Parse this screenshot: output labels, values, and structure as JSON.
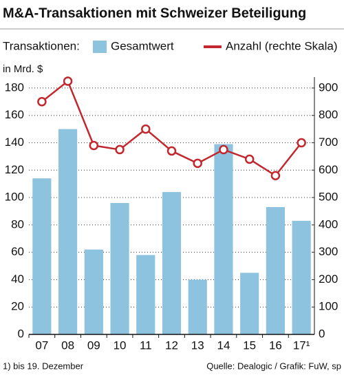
{
  "chart_data": {
    "type": "bar-line",
    "title": "M&A-Transaktionen mit Schweizer Beteiligung",
    "legend_title": "Transaktionen:",
    "y_label": "in Mrd. $",
    "categories": [
      "07",
      "08",
      "09",
      "10",
      "11",
      "12",
      "13",
      "14",
      "15",
      "16",
      "17¹"
    ],
    "series": [
      {
        "name": "Gesamtwert",
        "type": "bar",
        "color": "#8ec3e0",
        "values": [
          114,
          150,
          62,
          96,
          58,
          104,
          40,
          139,
          45,
          93,
          83
        ]
      },
      {
        "name": "Anzahl (rechte Skala)",
        "type": "line",
        "axis": "y2",
        "color": "#c1272d",
        "values": [
          850,
          925,
          690,
          675,
          750,
          670,
          625,
          675,
          640,
          580,
          700
        ]
      }
    ],
    "ylim": [
      0,
      188
    ],
    "yticks": [
      0,
      20,
      40,
      60,
      80,
      100,
      120,
      140,
      160,
      180
    ],
    "y2lim": [
      0,
      940
    ],
    "y2ticks": [
      0,
      100,
      200,
      300,
      400,
      500,
      600,
      700,
      800,
      900
    ],
    "grid": true,
    "footnote": "1) bis 19. Dezember",
    "source": "Quelle: Dealogic / Grafik: FuW, sp"
  }
}
